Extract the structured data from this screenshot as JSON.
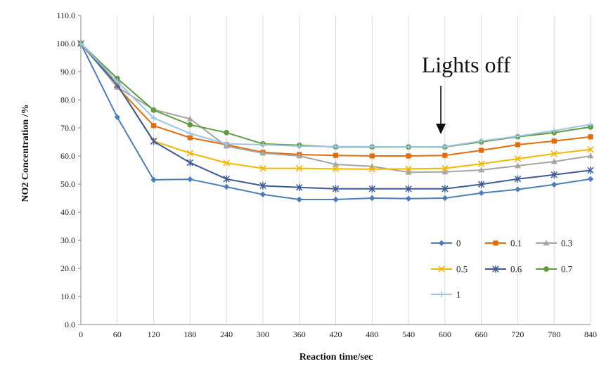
{
  "chart_data": {
    "type": "line",
    "xlabel": "Reaction time/sec",
    "ylabel": "NO2 Concentration /%",
    "x": [
      0,
      60,
      120,
      180,
      240,
      300,
      360,
      420,
      480,
      540,
      600,
      660,
      720,
      780,
      840
    ],
    "xlim": [
      0,
      840
    ],
    "ylim": [
      0,
      110
    ],
    "y_ticks": [
      0,
      10,
      20,
      30,
      40,
      50,
      60,
      70,
      80,
      90,
      100,
      110
    ],
    "y_tick_format": "0.0",
    "grid": "vertical",
    "legend_position": "bottom-right",
    "annotation": {
      "text": "Lights off",
      "x": 600
    },
    "series": [
      {
        "name": "0",
        "color": "#4a7ebb",
        "marker": "diamond",
        "values": [
          100,
          73.8,
          51.5,
          51.7,
          49.0,
          46.3,
          44.5,
          44.5,
          45.0,
          44.8,
          45.0,
          46.8,
          48.1,
          49.8,
          51.8
        ]
      },
      {
        "name": "0.1",
        "color": "#e46c0a",
        "marker": "square",
        "values": [
          100,
          84.5,
          70.8,
          66.5,
          64.0,
          61.3,
          60.5,
          60.2,
          60.0,
          60.0,
          60.2,
          62.0,
          64.0,
          65.3,
          66.8
        ]
      },
      {
        "name": "0.3",
        "color": "#a5a5a5",
        "marker": "triangle",
        "values": [
          100,
          84.5,
          76.5,
          73.2,
          63.5,
          61.0,
          60.0,
          57.0,
          56.3,
          54.2,
          54.3,
          55.0,
          56.5,
          58.0,
          60.0
        ]
      },
      {
        "name": "0.5",
        "color": "#f2b700",
        "marker": "x",
        "values": [
          100,
          85.5,
          65.3,
          61.0,
          57.5,
          55.6,
          55.6,
          55.4,
          55.3,
          55.4,
          55.6,
          57.2,
          59.0,
          60.8,
          62.3
        ]
      },
      {
        "name": "0.6",
        "color": "#3c5a9a",
        "marker": "star",
        "values": [
          100,
          85.3,
          65.2,
          57.6,
          51.8,
          49.4,
          48.8,
          48.3,
          48.3,
          48.3,
          48.3,
          49.9,
          51.8,
          53.3,
          54.9
        ]
      },
      {
        "name": "0.7",
        "color": "#5e9e3a",
        "marker": "circle",
        "values": [
          100,
          87.6,
          76.3,
          71.1,
          68.3,
          64.3,
          63.8,
          63.2,
          63.2,
          63.2,
          63.2,
          65.0,
          66.8,
          68.3,
          70.3
        ]
      },
      {
        "name": "1",
        "color": "#9dc3e6",
        "marker": "plus",
        "values": [
          100,
          86.5,
          73.5,
          68.0,
          64.3,
          64.0,
          63.5,
          63.3,
          63.3,
          63.2,
          63.3,
          65.3,
          67.0,
          69.0,
          71.2
        ]
      }
    ]
  }
}
